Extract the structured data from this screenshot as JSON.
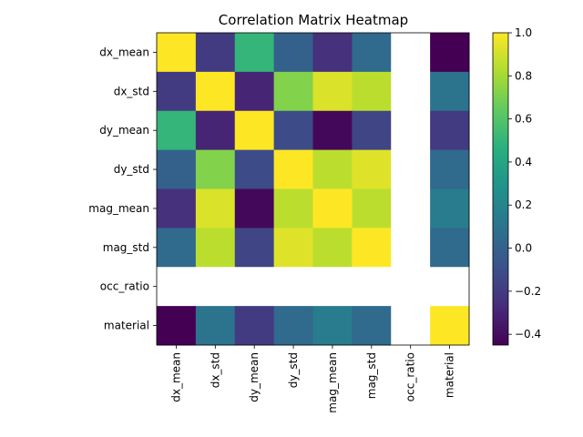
{
  "chart_data": {
    "type": "heatmap",
    "title": "Correlation Matrix Heatmap",
    "colormap": "viridis",
    "xlabel": "",
    "ylabel": "",
    "row_labels": [
      "dx_mean",
      "dx_std",
      "dy_mean",
      "dy_std",
      "mag_mean",
      "mag_std",
      "occ_ratio",
      "material"
    ],
    "col_labels": [
      "dx_mean",
      "dx_std",
      "dy_mean",
      "dy_std",
      "mag_mean",
      "mag_std",
      "occ_ratio",
      "material"
    ],
    "values": [
      [
        1.0,
        -0.2,
        0.5,
        0.0,
        -0.25,
        0.05,
        null,
        -0.45
      ],
      [
        -0.2,
        1.0,
        -0.3,
        0.72,
        0.92,
        0.85,
        null,
        0.1
      ],
      [
        0.5,
        -0.3,
        1.0,
        -0.12,
        -0.42,
        -0.15,
        null,
        -0.2
      ],
      [
        0.0,
        0.72,
        -0.12,
        1.0,
        0.85,
        0.93,
        null,
        0.05
      ],
      [
        -0.25,
        0.92,
        -0.42,
        0.85,
        1.0,
        0.85,
        null,
        0.15
      ],
      [
        0.05,
        0.85,
        -0.15,
        0.93,
        0.85,
        1.0,
        null,
        0.05
      ],
      [
        null,
        null,
        null,
        null,
        null,
        null,
        null,
        null
      ],
      [
        -0.45,
        0.1,
        -0.2,
        0.05,
        0.15,
        0.05,
        null,
        1.0
      ]
    ],
    "vmin": -0.45,
    "vmax": 1.0,
    "colorbar_ticks": [
      "1.0",
      "0.8",
      "0.6",
      "0.4",
      "0.2",
      "0.0",
      "−0.2",
      "−0.4"
    ],
    "colorbar_tick_values": [
      1.0,
      0.8,
      0.6,
      0.4,
      0.2,
      0.0,
      -0.2,
      -0.4
    ],
    "missing_color": "#ffffff"
  }
}
